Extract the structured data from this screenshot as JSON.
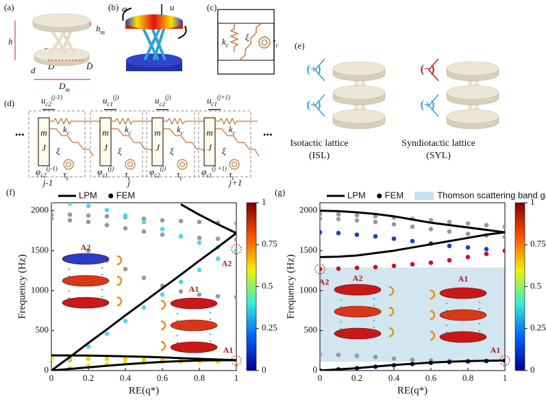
{
  "panels": {
    "a": {
      "label": "(a)",
      "hm": {
        "b": "h",
        "s": "m"
      },
      "h": "h",
      "theta": {
        "b": "θ",
        "s": "c"
      },
      "D": "D",
      "Dbar": "D̄",
      "d": "d",
      "Dm": {
        "b": "D",
        "s": "m"
      }
    },
    "b": {
      "label": "(b)",
      "phi": "φ",
      "u": "u"
    },
    "c": {
      "label": "(c)",
      "m_top": "m",
      "m_bottom": "m",
      "k": {
        "b": "k",
        "s": "c"
      },
      "xi": "ξ",
      "tau": {
        "b": "τ",
        "s": "c"
      }
    },
    "d": {
      "label": "(d)",
      "ellipsis": [
        "•••",
        "•••"
      ],
      "indices": [
        "j-1",
        "j",
        "j+1"
      ],
      "units": [
        {
          "u": {
            "b": "u",
            "s": "c2",
            "p": "(j-1)"
          },
          "m": "m",
          "J": "J",
          "phi": {
            "b": "φ",
            "s": "c2",
            "p": "(j-1)"
          },
          "k": {
            "b": "k",
            "s": "c"
          },
          "xi": "ξ",
          "tau": {
            "b": "τ",
            "s": "c"
          }
        },
        {
          "u": {
            "b": "u",
            "s": "c1",
            "p": "(j)"
          },
          "m": "m",
          "J": "J",
          "phi": {
            "b": "φ",
            "s": "c1",
            "p": "(j)"
          },
          "k": {
            "b": "k",
            "s": "c"
          },
          "xi": "ξ",
          "tau": {
            "b": "τ",
            "s": "c"
          }
        },
        {
          "u": {
            "b": "u",
            "s": "c2",
            "p": "(j)"
          },
          "m": "m",
          "J": "J",
          "phi": {
            "b": "φ",
            "s": "c2",
            "p": "(j)"
          },
          "k": {
            "b": "k",
            "s": "c"
          },
          "xi": "ξ",
          "tau": {
            "b": "τ",
            "s": "c"
          }
        },
        {
          "u": {
            "b": "u",
            "s": "c1",
            "p": "(j+1)"
          },
          "m": "m",
          "J": "J",
          "phi": {
            "b": "φ",
            "s": "c1",
            "p": "(j +1)"
          },
          "k": {
            "b": "k",
            "s": "c"
          },
          "xi": "ξ",
          "tau": {
            "b": "τ",
            "s": "c"
          }
        }
      ]
    },
    "e": {
      "label": "(e)",
      "signs_left": [
        "(+)",
        "(+)"
      ],
      "signs_right": [
        "(−)",
        "(+)"
      ],
      "isl": [
        "Isotactic lattice",
        "(ISL)"
      ],
      "syl": [
        "Syndiotactic lattice",
        "(SYL)"
      ]
    }
  },
  "chart_data": [
    {
      "type": "line",
      "panel_label": "(f)",
      "xlabel": "RE(q*)",
      "ylabel": "Frequency (Hz)",
      "x": [
        0,
        0.1,
        0.2,
        0.3,
        0.4,
        0.5,
        0.6,
        0.7,
        0.8,
        0.9,
        1
      ],
      "xlim": [
        0,
        1
      ],
      "xticks": [
        0,
        0.2,
        0.4,
        0.6,
        0.8,
        1
      ],
      "ylim": [
        0,
        2100
      ],
      "yticks": [
        0,
        500,
        1000,
        1500,
        2000
      ],
      "legend": [
        {
          "name": "LPM",
          "color": "#000000",
          "style": "line"
        },
        {
          "name": "FEM",
          "color": "#000000",
          "style": "dots"
        }
      ],
      "series": [
        {
          "color": "#999999",
          "style": "dots",
          "values": [
            1950,
            1950,
            1940,
            1930,
            1920,
            1900,
            1880,
            1870,
            1860,
            1850,
            1840
          ]
        },
        {
          "color": "#999999",
          "style": "dots",
          "values": [
            1900,
            1880,
            1860,
            1820,
            1780,
            1740,
            1700,
            1680,
            1660,
            1650,
            1640
          ]
        },
        {
          "color": "#999999",
          "style": "dots",
          "values": [
            null,
            null,
            1500,
            1380,
            1270,
            1160,
            1060,
            990,
            950,
            930,
            920
          ]
        },
        {
          "color": "#4fd8f0",
          "style": "dots",
          "values": [
            2100,
            2090,
            2060,
            2010,
            1940,
            1860,
            1770,
            1680,
            1600,
            1540,
            1500
          ]
        },
        {
          "color": "#4fd8f0",
          "style": "dots",
          "values": [
            0,
            130,
            300,
            460,
            620,
            790,
            950,
            1110,
            1260,
            1400,
            1500
          ]
        },
        {
          "color": "#f2d500",
          "style": "dots",
          "values": [
            150,
            150,
            148,
            145,
            140,
            135,
            130,
            125,
            120,
            115,
            110
          ]
        },
        {
          "color": "#f2d500",
          "style": "dots",
          "values": [
            0,
            30,
            55,
            75,
            90,
            100,
            108,
            112,
            115,
            117,
            118
          ]
        },
        {
          "color": "#000000",
          "style": "line",
          "values": [
            0,
            170,
            345,
            515,
            690,
            860,
            1030,
            1200,
            1375,
            1545,
            1720
          ]
        },
        {
          "color": "#000000",
          "style": "line",
          "values": [
            190,
            189,
            187,
            183,
            178,
            172,
            165,
            155,
            147,
            138,
            130
          ]
        },
        {
          "color": "#000000",
          "style": "line",
          "values": [
            0,
            20,
            40,
            60,
            78,
            94,
            108,
            118,
            125,
            129,
            130
          ]
        },
        {
          "color": "#000000",
          "style": "line",
          "values": [
            null,
            null,
            null,
            null,
            null,
            null,
            null,
            2080,
            1950,
            1830,
            1720
          ]
        }
      ],
      "annotations": [
        {
          "text": "A2",
          "x": 1,
          "y": 1520
        },
        {
          "text": "A1",
          "x": 1,
          "y": 125
        }
      ],
      "inset_labels": [
        "A2",
        "A1"
      ],
      "colorbar": {
        "colors": [
          "#00008f",
          "#0060ff",
          "#30f0d0",
          "#f0f000",
          "#ff5000",
          "#800000"
        ],
        "lim": [
          0,
          1
        ],
        "ticks": [
          0,
          0.25,
          0.5,
          0.75,
          1
        ]
      }
    },
    {
      "type": "line",
      "panel_label": "(g)",
      "xlabel": "RE(q*)",
      "ylabel": "Frequency (Hz)",
      "x": [
        0,
        0.1,
        0.2,
        0.3,
        0.4,
        0.5,
        0.6,
        0.7,
        0.8,
        0.9,
        1
      ],
      "xlim": [
        0,
        1
      ],
      "xticks": [
        0,
        0.2,
        0.4,
        0.6,
        0.8,
        1
      ],
      "ylim": [
        0,
        2100
      ],
      "yticks": [
        0,
        500,
        1000,
        1500,
        2000
      ],
      "legend": [
        {
          "name": "LPM",
          "color": "#000000",
          "style": "line"
        },
        {
          "name": "FEM",
          "color": "#000000",
          "style": "dots"
        }
      ],
      "band_gap": {
        "name": "Thomson scattering band gap",
        "color": "#c5e0ea",
        "range": [
          110,
          1290
        ]
      },
      "series": [
        {
          "color": "#999999",
          "style": "dots",
          "values": [
            1960,
            1955,
            1945,
            1930,
            1915,
            1900,
            1880,
            1860,
            1840,
            1820,
            1800
          ]
        },
        {
          "color": "#999999",
          "style": "dots",
          "values": [
            1900,
            1895,
            1880,
            1860,
            1830,
            1800,
            1770,
            1740,
            1710,
            1690,
            1670
          ]
        },
        {
          "color": "#999999",
          "style": "dots",
          "values": [
            200,
            195,
            185,
            170,
            150,
            135,
            125,
            120,
            118,
            117,
            116
          ]
        },
        {
          "color": "#1f3fbf",
          "style": "dots",
          "values": [
            1730,
            1720,
            1700,
            1680,
            1650,
            1620,
            1590,
            1560,
            1540,
            1520,
            1500
          ]
        },
        {
          "color": "#c8102e",
          "style": "dots",
          "values": [
            1270,
            1275,
            1285,
            1295,
            1310,
            1330,
            1350,
            1380,
            1420,
            1460,
            1500
          ]
        },
        {
          "color": "#0a1a8a",
          "style": "dots",
          "values": [
            0,
            15,
            30,
            48,
            66,
            82,
            96,
            106,
            114,
            120,
            125
          ]
        },
        {
          "color": "#000000",
          "style": "line",
          "values": [
            2000,
            1995,
            1980,
            1960,
            1930,
            1890,
            1850,
            1820,
            1790,
            1760,
            1730
          ]
        },
        {
          "color": "#000000",
          "style": "line",
          "values": [
            1420,
            1425,
            1440,
            1470,
            1500,
            1540,
            1580,
            1620,
            1660,
            1700,
            1730
          ]
        },
        {
          "color": "#000000",
          "style": "line",
          "values": [
            0,
            15,
            30,
            50,
            70,
            85,
            100,
            110,
            118,
            123,
            125
          ]
        }
      ],
      "annotations": [
        {
          "text": "A2",
          "x": 0,
          "y": 1270
        },
        {
          "text": "A1",
          "x": 1,
          "y": 125
        }
      ],
      "inset_labels": [
        "A2",
        "A1"
      ],
      "colorbar": {
        "colors": [
          "#00008f",
          "#0060ff",
          "#30f0d0",
          "#f0f000",
          "#ff5000",
          "#800000"
        ],
        "lim": [
          0,
          1
        ],
        "ticks": [
          0,
          0.25,
          0.5,
          0.75,
          1
        ]
      }
    }
  ]
}
